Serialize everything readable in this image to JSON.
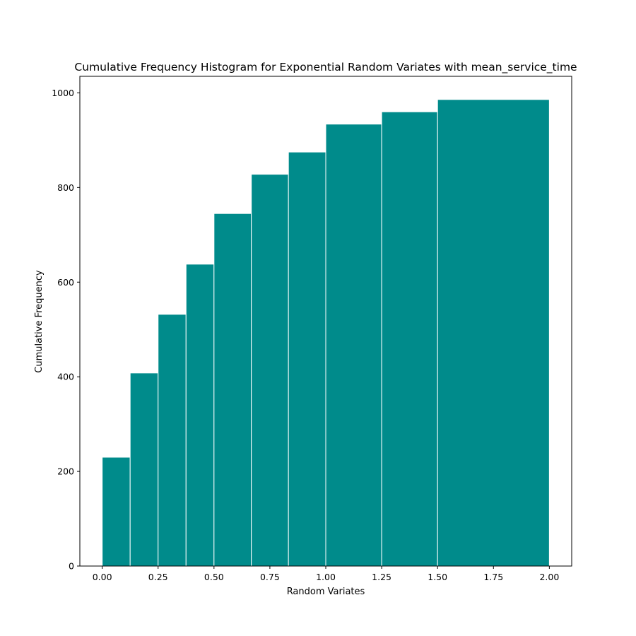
{
  "chart_data": {
    "type": "bar",
    "title": "Cumulative Frequency Histogram for Exponential Random Variates with mean_service_time",
    "xlabel": "Random Variates",
    "ylabel": "Cumulative Frequency",
    "bar_color": "#008b8b",
    "edge_color": "#ffffff",
    "grid": false,
    "legend": "none",
    "xlim": [
      -0.1,
      2.1
    ],
    "ylim": [
      0,
      1035
    ],
    "x_ticks": [
      "0.00",
      "0.25",
      "0.50",
      "0.75",
      "1.00",
      "1.25",
      "1.50",
      "1.75",
      "2.00"
    ],
    "y_ticks": [
      "0",
      "200",
      "400",
      "600",
      "800",
      "1000"
    ],
    "bins": [
      {
        "start": 0.0,
        "end": 0.125,
        "value": 230
      },
      {
        "start": 0.125,
        "end": 0.25,
        "value": 408
      },
      {
        "start": 0.25,
        "end": 0.375,
        "value": 532
      },
      {
        "start": 0.375,
        "end": 0.5,
        "value": 638
      },
      {
        "start": 0.5,
        "end": 0.667,
        "value": 745
      },
      {
        "start": 0.667,
        "end": 0.833,
        "value": 828
      },
      {
        "start": 0.833,
        "end": 1.0,
        "value": 875
      },
      {
        "start": 1.0,
        "end": 1.25,
        "value": 934
      },
      {
        "start": 1.25,
        "end": 1.5,
        "value": 960
      },
      {
        "start": 1.5,
        "end": 2.0,
        "value": 986
      }
    ]
  }
}
